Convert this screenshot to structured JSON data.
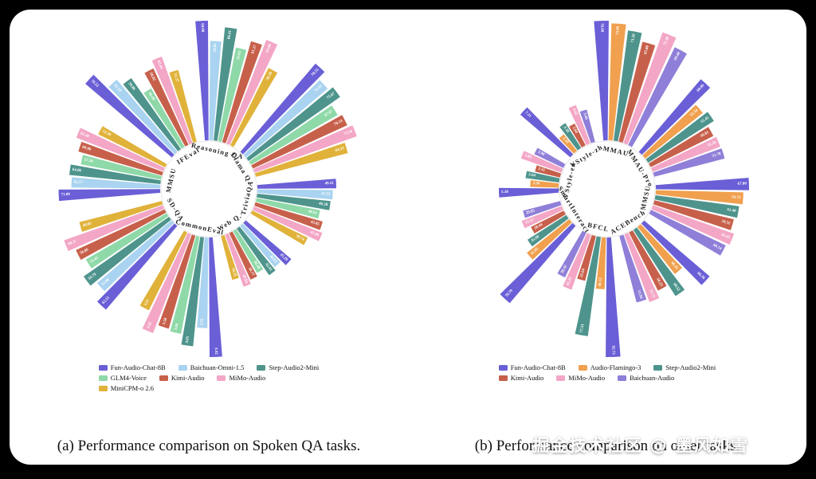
{
  "page": {
    "background": "#000000",
    "card_background": "#ffffff"
  },
  "watermark": {
    "text": "掘金技术社区 @ 墨风如雪"
  },
  "captions": {
    "a": "(a) Performance comparison on Spoken QA tasks.",
    "b": "(b) Performance comparison on other tasks."
  },
  "chart_data": [
    {
      "type": "bar",
      "subtype": "polar_bar",
      "title": "Performance comparison on Spoken QA tasks",
      "legend_position": "bottom",
      "series": [
        "Fun-Audio-Chat-8B",
        "Baichuan-Omni-1.5",
        "Step-Audio2-Mini",
        "GLM4-Voice",
        "Kimi-Audio",
        "MiMo-Audio",
        "MiniCPM-o 2.6"
      ],
      "colors": [
        "#6a5fd6",
        "#a9d3f0",
        "#4e948c",
        "#8fd9a8",
        "#c7604b",
        "#f3a6c6",
        "#e0b23a"
      ],
      "legend_rows": [
        [
          0,
          1,
          2
        ],
        [
          3,
          4,
          5
        ],
        [
          6
        ]
      ],
      "groups": [
        {
          "label": "IFEval",
          "reach": 0.95,
          "values": [
            78.52,
            65.1,
            59.86,
            46.49,
            58.02,
            63.44,
            51.27
          ]
        },
        {
          "label": "Reasoning QA",
          "reach": 1.0,
          "values": [
            69.8,
            58.02,
            66.41,
            55.63,
            61.27,
            64.88,
            50.39
          ]
        },
        {
          "label": "Llama Q.",
          "reach": 0.97,
          "values": [
            78.53,
            72.33,
            75.67,
            67.67,
            70.33,
            73.5,
            64.33
          ]
        },
        {
          "label": "TriviaQA",
          "reach": 0.66,
          "values": [
            49.51,
            47.33,
            46.28,
            40.62,
            43.85,
            45.9,
            38.74
          ]
        },
        {
          "label": "Web Q.",
          "reach": 0.5,
          "values": [
            45.2,
            40.62,
            42.91,
            36.48,
            38.77,
            41.84,
            34.25
          ]
        },
        {
          "label": "CommonEval",
          "reach": 1.0,
          "values": [
            4.42,
            3.35,
            4.05,
            3.66,
            3.58,
            3.92,
            3.21
          ]
        },
        {
          "label": "SD-QA",
          "reach": 0.92,
          "values": [
            63.12,
            55.9,
            59.79,
            53.42,
            56.06,
            60.27,
            48.85
          ]
        },
        {
          "label": "MMSU",
          "reach": 0.85,
          "values": [
            71.08,
            62.17,
            64.06,
            57.2,
            60.9,
            65.4,
            52.3
          ]
        }
      ]
    },
    {
      "type": "bar",
      "subtype": "polar_bar",
      "title": "Performance comparison on other tasks",
      "legend_position": "bottom",
      "series": [
        "Fun-Audio-Chat-8B",
        "Audio-Flamingo-3",
        "Step-Audio2-Mini",
        "Kimi-Audio",
        "MiMo-Audio",
        "Baichuan-Audio"
      ],
      "colors": [
        "#6a5fd6",
        "#f0a04e",
        "#4e948c",
        "#c7604b",
        "#f3a6c6",
        "#8f7fd8"
      ],
      "legend_rows": [
        [
          0,
          1,
          2
        ],
        [
          3,
          4,
          5
        ]
      ],
      "groups": [
        {
          "label": "VStyle-zh",
          "reach": 0.55,
          "values": [
            7.11,
            2.29,
            3.18,
            2.64,
            4.42,
            3.6
          ]
        },
        {
          "label": "MMAU",
          "reach": 1.0,
          "values": [
            76.6,
            74.9,
            71.2,
            65.8,
            75.3,
            69.4
          ]
        },
        {
          "label": "MMAU-Pro",
          "reach": 0.8,
          "values": [
            68.06,
            52.34,
            55.42,
            49.81,
            51.28,
            51.78
          ]
        },
        {
          "label": "MMSU",
          "reach": 0.78,
          "values": [
            67.8,
            63.72,
            61.4,
            59.32,
            62.45,
            60.14
          ]
        },
        {
          "label": "ACEBench",
          "reach": 0.72,
          "values": [
            66.36,
            46.42,
            60.52,
            50.23,
            55.71,
            52.94
          ]
        },
        {
          "label": "BFCL",
          "reach": 1.0,
          "values": [
            92.73,
            40.12,
            77.51,
            35.64,
            45.23,
            38.42
          ]
        },
        {
          "label": "SmartInteract",
          "reach": 0.85,
          "values": [
            78.79,
            41.95,
            35.6,
            28.44,
            33.12,
            29.85
          ]
        },
        {
          "label": "VStyle-en",
          "reach": 0.5,
          "values": [
            5.38,
            2.56,
            3.04,
            2.31,
            3.86,
            2.9
          ]
        }
      ]
    }
  ]
}
